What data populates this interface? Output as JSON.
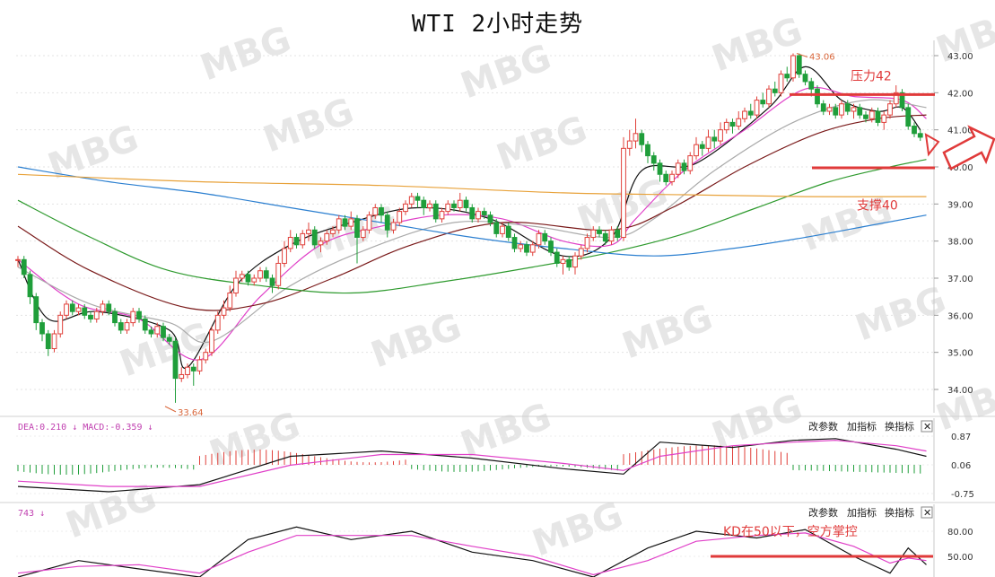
{
  "chart_data": {
    "type": "candlestick",
    "title": "WTI 2小时走势",
    "price_axis": {
      "ticks": [
        "43.00",
        "42.00",
        "41.00",
        "40.00",
        "39.00",
        "38.00",
        "37.00",
        "36.00",
        "35.00",
        "34.00"
      ],
      "ylim": [
        33.5,
        43.3
      ]
    },
    "annotations": {
      "resistance_label": "压力42",
      "support_label": "支撑40",
      "high_label": "43.06",
      "low_label": "33.64",
      "resistance_value": 42.0,
      "support_value": 40.0,
      "high_value": 43.06,
      "low_value": 33.64
    },
    "candles": [
      [
        37.5,
        37.5,
        37.6,
        37.3
      ],
      [
        37.5,
        37.1,
        37.6,
        37.0
      ],
      [
        37.1,
        36.5,
        37.2,
        36.3
      ],
      [
        36.5,
        35.8,
        36.6,
        35.6
      ],
      [
        35.8,
        35.5,
        35.9,
        35.3
      ],
      [
        35.5,
        35.1,
        35.6,
        34.9
      ],
      [
        35.1,
        35.5,
        35.6,
        35.0
      ],
      [
        35.5,
        36.0,
        36.1,
        35.4
      ],
      [
        36.0,
        36.3,
        36.4,
        35.9
      ],
      [
        36.3,
        36.1,
        36.4,
        36.0
      ],
      [
        36.1,
        36.2,
        36.3,
        36.0
      ],
      [
        36.2,
        36.0,
        36.3,
        35.9
      ],
      [
        36.0,
        35.9,
        36.1,
        35.8
      ],
      [
        35.9,
        36.1,
        36.2,
        35.8
      ],
      [
        36.1,
        36.3,
        36.4,
        36.0
      ],
      [
        36.3,
        36.1,
        36.4,
        36.0
      ],
      [
        36.1,
        35.8,
        36.2,
        35.7
      ],
      [
        35.8,
        35.6,
        35.9,
        35.5
      ],
      [
        35.6,
        35.8,
        35.9,
        35.5
      ],
      [
        35.8,
        36.1,
        36.2,
        35.7
      ],
      [
        36.1,
        35.9,
        36.2,
        35.8
      ],
      [
        35.9,
        35.6,
        36.0,
        35.5
      ],
      [
        35.6,
        35.5,
        35.7,
        35.4
      ],
      [
        35.5,
        35.7,
        35.8,
        35.4
      ],
      [
        35.7,
        35.4,
        35.8,
        35.3
      ],
      [
        35.4,
        35.3,
        35.5,
        35.2
      ],
      [
        35.3,
        34.3,
        35.4,
        33.64
      ],
      [
        34.3,
        34.4,
        34.6,
        34.2
      ],
      [
        34.4,
        34.6,
        34.7,
        34.3
      ],
      [
        34.6,
        34.5,
        34.7,
        34.1
      ],
      [
        34.5,
        34.8,
        34.9,
        34.4
      ],
      [
        34.8,
        35.0,
        35.1,
        34.7
      ],
      [
        35.0,
        35.6,
        35.7,
        34.9
      ],
      [
        35.6,
        36.0,
        36.1,
        35.5
      ],
      [
        36.0,
        36.2,
        36.4,
        35.9
      ],
      [
        36.2,
        36.6,
        36.8,
        36.1
      ],
      [
        36.6,
        37.0,
        37.2,
        36.5
      ],
      [
        37.0,
        37.1,
        37.2,
        36.9
      ],
      [
        37.1,
        36.9,
        37.2,
        36.8
      ],
      [
        36.9,
        37.0,
        37.1,
        36.8
      ],
      [
        37.0,
        37.2,
        37.3,
        36.9
      ],
      [
        37.2,
        37.0,
        37.3,
        36.9
      ],
      [
        37.0,
        36.8,
        37.1,
        36.6
      ],
      [
        36.8,
        37.4,
        37.6,
        36.7
      ],
      [
        37.4,
        37.8,
        38.0,
        37.3
      ],
      [
        37.8,
        38.1,
        38.3,
        37.7
      ],
      [
        38.1,
        37.9,
        38.2,
        37.8
      ],
      [
        37.9,
        38.2,
        38.3,
        37.8
      ],
      [
        38.2,
        38.3,
        38.5,
        38.0
      ],
      [
        38.3,
        37.9,
        38.4,
        37.8
      ],
      [
        37.9,
        38.0,
        38.1,
        37.7
      ],
      [
        38.0,
        38.2,
        38.3,
        37.9
      ],
      [
        38.2,
        38.3,
        38.4,
        38.1
      ],
      [
        38.3,
        38.6,
        38.7,
        38.2
      ],
      [
        38.6,
        38.4,
        38.7,
        38.3
      ],
      [
        38.4,
        38.6,
        38.8,
        38.3
      ],
      [
        38.6,
        38.1,
        38.7,
        37.4
      ],
      [
        38.1,
        38.3,
        38.4,
        38.0
      ],
      [
        38.3,
        38.7,
        38.8,
        38.2
      ],
      [
        38.7,
        38.9,
        39.0,
        38.6
      ],
      [
        38.9,
        38.7,
        39.0,
        38.5
      ],
      [
        38.7,
        38.3,
        38.8,
        38.1
      ],
      [
        38.3,
        38.5,
        38.6,
        38.2
      ],
      [
        38.5,
        38.8,
        38.9,
        38.4
      ],
      [
        38.8,
        39.0,
        39.1,
        38.7
      ],
      [
        39.0,
        39.2,
        39.3,
        38.9
      ],
      [
        39.2,
        39.1,
        39.3,
        38.9
      ],
      [
        39.1,
        38.9,
        39.2,
        38.7
      ],
      [
        38.9,
        39.0,
        39.1,
        38.8
      ],
      [
        39.0,
        38.6,
        39.1,
        38.5
      ],
      [
        38.6,
        38.8,
        38.9,
        38.5
      ],
      [
        38.8,
        39.0,
        39.1,
        38.7
      ],
      [
        39.0,
        38.9,
        39.1,
        38.8
      ],
      [
        38.9,
        39.1,
        39.3,
        38.8
      ],
      [
        39.1,
        38.9,
        39.2,
        38.8
      ],
      [
        38.9,
        38.6,
        39.0,
        38.5
      ],
      [
        38.6,
        38.8,
        38.9,
        38.5
      ],
      [
        38.8,
        38.7,
        38.9,
        38.6
      ],
      [
        38.7,
        38.5,
        38.8,
        38.4
      ],
      [
        38.5,
        38.2,
        38.6,
        38.1
      ],
      [
        38.2,
        38.4,
        38.5,
        38.1
      ],
      [
        38.4,
        38.1,
        38.5,
        38.0
      ],
      [
        38.1,
        37.8,
        38.2,
        37.7
      ],
      [
        37.8,
        37.9,
        38.0,
        37.7
      ],
      [
        37.9,
        37.7,
        38.0,
        37.6
      ],
      [
        37.7,
        37.9,
        38.0,
        37.6
      ],
      [
        37.9,
        38.2,
        38.3,
        37.8
      ],
      [
        38.2,
        38.0,
        38.3,
        37.9
      ],
      [
        38.0,
        37.7,
        38.1,
        37.6
      ],
      [
        37.7,
        37.4,
        37.8,
        37.3
      ],
      [
        37.4,
        37.5,
        37.6,
        37.1
      ],
      [
        37.5,
        37.3,
        37.6,
        37.2
      ],
      [
        37.3,
        37.6,
        37.7,
        37.1
      ],
      [
        37.6,
        37.8,
        37.9,
        37.5
      ],
      [
        37.8,
        38.1,
        38.2,
        37.7
      ],
      [
        38.1,
        38.3,
        38.4,
        38.0
      ],
      [
        38.3,
        38.2,
        38.4,
        38.1
      ],
      [
        38.2,
        38.0,
        38.3,
        37.9
      ],
      [
        38.0,
        38.3,
        38.4,
        37.9
      ],
      [
        38.3,
        38.1,
        38.4,
        38.0
      ],
      [
        38.1,
        40.5,
        40.8,
        38.0
      ],
      [
        40.5,
        40.7,
        41.0,
        40.3
      ],
      [
        40.7,
        40.9,
        41.3,
        40.5
      ],
      [
        40.9,
        40.6,
        41.0,
        40.4
      ],
      [
        40.6,
        40.3,
        40.7,
        40.1
      ],
      [
        40.3,
        40.1,
        40.4,
        39.9
      ],
      [
        40.1,
        39.8,
        40.2,
        39.6
      ],
      [
        39.8,
        39.6,
        39.9,
        39.5
      ],
      [
        39.6,
        39.8,
        39.9,
        39.5
      ],
      [
        39.8,
        40.1,
        40.2,
        39.7
      ],
      [
        40.1,
        39.9,
        40.2,
        39.8
      ],
      [
        39.9,
        40.3,
        40.4,
        39.8
      ],
      [
        40.3,
        40.6,
        40.8,
        40.2
      ],
      [
        40.6,
        40.5,
        40.7,
        40.3
      ],
      [
        40.5,
        40.8,
        41.0,
        40.4
      ],
      [
        40.8,
        40.7,
        41.0,
        40.5
      ],
      [
        40.7,
        41.0,
        41.2,
        40.6
      ],
      [
        41.0,
        41.2,
        41.3,
        40.9
      ],
      [
        41.2,
        41.1,
        41.3,
        40.9
      ],
      [
        41.1,
        41.3,
        41.5,
        41.0
      ],
      [
        41.3,
        41.5,
        41.6,
        41.2
      ],
      [
        41.5,
        41.4,
        41.7,
        41.3
      ],
      [
        41.4,
        41.8,
        41.9,
        41.3
      ],
      [
        41.8,
        41.7,
        42.0,
        41.6
      ],
      [
        41.7,
        42.1,
        42.2,
        41.6
      ],
      [
        42.1,
        42.0,
        42.3,
        41.9
      ],
      [
        42.0,
        42.5,
        42.6,
        41.9
      ],
      [
        42.5,
        42.4,
        42.7,
        42.3
      ],
      [
        42.4,
        43.0,
        43.06,
        42.3
      ],
      [
        43.0,
        42.5,
        43.06,
        42.4
      ],
      [
        42.5,
        42.3,
        42.6,
        42.2
      ],
      [
        42.3,
        42.1,
        42.4,
        41.9
      ],
      [
        42.1,
        41.7,
        42.2,
        41.6
      ],
      [
        41.7,
        41.5,
        41.8,
        41.4
      ],
      [
        41.5,
        41.6,
        41.7,
        41.4
      ],
      [
        41.6,
        41.4,
        41.7,
        41.3
      ],
      [
        41.4,
        41.7,
        41.8,
        41.3
      ],
      [
        41.7,
        41.5,
        41.8,
        41.4
      ],
      [
        41.5,
        41.6,
        41.7,
        41.3
      ],
      [
        41.6,
        41.4,
        41.7,
        41.3
      ],
      [
        41.4,
        41.3,
        41.5,
        41.2
      ],
      [
        41.3,
        41.5,
        41.6,
        41.2
      ],
      [
        41.5,
        41.2,
        41.6,
        41.1
      ],
      [
        41.2,
        41.4,
        41.5,
        41.0
      ],
      [
        41.4,
        41.7,
        41.8,
        41.3
      ],
      [
        41.7,
        42.0,
        42.2,
        41.6
      ],
      [
        42.0,
        41.6,
        42.1,
        41.5
      ],
      [
        41.6,
        41.1,
        41.7,
        41.0
      ],
      [
        41.1,
        40.9,
        41.2,
        40.8
      ],
      [
        40.9,
        40.8,
        41.0,
        40.7
      ]
    ],
    "ma_series": [
      {
        "color": "#111111",
        "anchors": [
          [
            0,
            37.5
          ],
          [
            5,
            35.9
          ],
          [
            13,
            36.1
          ],
          [
            25,
            35.6
          ],
          [
            28,
            34.6
          ],
          [
            36,
            36.8
          ],
          [
            45,
            37.9
          ],
          [
            55,
            38.5
          ],
          [
            66,
            38.9
          ],
          [
            78,
            38.6
          ],
          [
            90,
            37.6
          ],
          [
            98,
            38.1
          ],
          [
            103,
            39.9
          ],
          [
            112,
            40.1
          ],
          [
            124,
            41.6
          ],
          [
            130,
            42.7
          ],
          [
            136,
            41.8
          ],
          [
            142,
            41.5
          ],
          [
            146,
            41.6
          ],
          [
            149,
            41.0
          ]
        ]
      },
      {
        "color": "#e040c8",
        "anchors": [
          [
            0,
            37.5
          ],
          [
            10,
            36.3
          ],
          [
            20,
            35.9
          ],
          [
            30,
            34.8
          ],
          [
            40,
            36.5
          ],
          [
            50,
            37.9
          ],
          [
            60,
            38.4
          ],
          [
            70,
            38.7
          ],
          [
            80,
            38.6
          ],
          [
            90,
            38.0
          ],
          [
            98,
            37.9
          ],
          [
            102,
            38.6
          ],
          [
            110,
            39.9
          ],
          [
            120,
            41.0
          ],
          [
            130,
            42.1
          ],
          [
            138,
            41.9
          ],
          [
            146,
            41.8
          ],
          [
            150,
            41.3
          ]
        ]
      },
      {
        "color": "#aaaaaa",
        "anchors": [
          [
            0,
            37.3
          ],
          [
            12,
            36.3
          ],
          [
            25,
            35.8
          ],
          [
            32,
            35.3
          ],
          [
            45,
            36.8
          ],
          [
            58,
            37.8
          ],
          [
            72,
            38.5
          ],
          [
            85,
            38.4
          ],
          [
            98,
            38.1
          ],
          [
            105,
            38.6
          ],
          [
            115,
            39.9
          ],
          [
            128,
            41.2
          ],
          [
            140,
            41.8
          ],
          [
            150,
            41.6
          ]
        ]
      },
      {
        "color": "#7a1a1a",
        "anchors": [
          [
            0,
            38.4
          ],
          [
            12,
            37.2
          ],
          [
            28,
            36.2
          ],
          [
            40,
            36.3
          ],
          [
            52,
            37.0
          ],
          [
            65,
            37.9
          ],
          [
            80,
            38.5
          ],
          [
            98,
            38.3
          ],
          [
            108,
            38.9
          ],
          [
            120,
            40.0
          ],
          [
            132,
            40.9
          ],
          [
            142,
            41.3
          ],
          [
            150,
            41.4
          ]
        ]
      },
      {
        "color": "#2e9a2e",
        "anchors": [
          [
            0,
            39.1
          ],
          [
            12,
            38.1
          ],
          [
            25,
            37.2
          ],
          [
            40,
            36.8
          ],
          [
            55,
            36.6
          ],
          [
            70,
            36.9
          ],
          [
            85,
            37.3
          ],
          [
            98,
            37.7
          ],
          [
            110,
            38.2
          ],
          [
            122,
            38.9
          ],
          [
            134,
            39.6
          ],
          [
            144,
            40.0
          ],
          [
            150,
            40.2
          ]
        ]
      },
      {
        "color": "#2b7fd0",
        "anchors": [
          [
            0,
            40.0
          ],
          [
            15,
            39.6
          ],
          [
            30,
            39.3
          ],
          [
            45,
            38.9
          ],
          [
            60,
            38.5
          ],
          [
            75,
            38.1
          ],
          [
            90,
            37.8
          ],
          [
            105,
            37.6
          ],
          [
            118,
            37.8
          ],
          [
            130,
            38.1
          ],
          [
            140,
            38.4
          ],
          [
            150,
            38.7
          ]
        ]
      },
      {
        "color": "#e8a23a",
        "anchors": [
          [
            0,
            39.8
          ],
          [
            30,
            39.6
          ],
          [
            60,
            39.5
          ],
          [
            90,
            39.3
          ],
          [
            110,
            39.25
          ],
          [
            130,
            39.2
          ],
          [
            150,
            39.2
          ]
        ]
      }
    ],
    "macd_panel": {
      "label": "DEA:0.210 ↓ MACD:-0.359 ↓",
      "ticks": [
        "0.87",
        "0.06",
        "-0.75"
      ],
      "ylim": [
        -0.75,
        0.87
      ]
    },
    "kd_panel": {
      "label": "743 ↓",
      "ticks": [
        "80.00",
        "50.00"
      ],
      "annotation": "KD在50以下，空方掌控"
    }
  },
  "toolbar": {
    "change_params": "改参数",
    "add_indicator": "加指标",
    "swap_indicator": "换指标",
    "close": "✕"
  },
  "watermark": "MBG",
  "colors": {
    "up": "#e0403a",
    "down": "#1f9e3a",
    "annotation": "#e03a3a"
  }
}
